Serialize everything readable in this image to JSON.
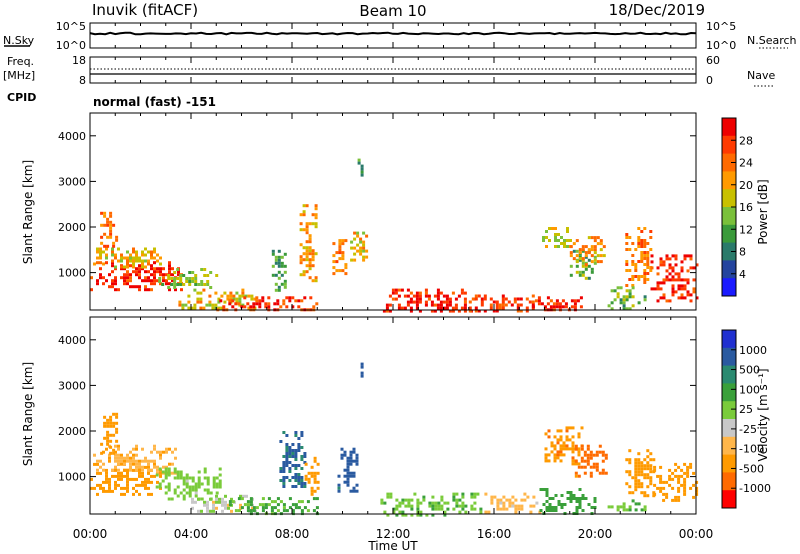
{
  "header": {
    "station": "Inuvik (fitACF)",
    "beam": "Beam 10",
    "date": "18/Dec/2019"
  },
  "panels": {
    "sky": {
      "left_label": "N.Sky",
      "right_label": "N.Search",
      "ticks_left": [
        "10^5",
        "10^0"
      ],
      "ticks_right": [
        "10^5",
        "10^0"
      ]
    },
    "freq": {
      "left_label_1": "Freq.",
      "left_label_2": "[MHz]",
      "right_label": "Nave",
      "ticks_left": [
        "18",
        "8"
      ],
      "ticks_right": [
        "60",
        "0"
      ]
    },
    "cpid": {
      "label": "CPID",
      "value": "normal (fast) -151"
    }
  },
  "colors": {
    "power_scale": [
      "#1b1bff",
      "#24449e",
      "#2a7a6a",
      "#3a9a3a",
      "#7ac03a",
      "#c8c000",
      "#ff9a00",
      "#ff6a00",
      "#ff3a00",
      "#ee0000"
    ],
    "velocity_scale": [
      "#ff0000",
      "#ff6a00",
      "#ff9a00",
      "#ffb64a",
      "#c8c8c8",
      "#7acb3a",
      "#3aa03a",
      "#2a8a70",
      "#2a5aa0",
      "#2030d0"
    ],
    "sky_trace": "#000000"
  },
  "chart_data": [
    {
      "type": "heatmap",
      "name": "power",
      "ylabel": "Slant Range [km]",
      "colorbar_label": "Power [dB]",
      "colorbar_ticks": [
        "28",
        "24",
        "20",
        "16",
        "12",
        "8",
        "4"
      ],
      "ylim": [
        180,
        4500
      ],
      "yticks": [
        1000,
        2000,
        3000,
        4000
      ],
      "x_ticks": [
        "00:00",
        "04:00",
        "08:00",
        "12:00",
        "16:00",
        "20:00",
        "00:00"
      ],
      "xlim_hours": [
        0,
        24
      ],
      "blobs": [
        {
          "t0": 0.0,
          "t1": 3.7,
          "r0": 650,
          "r1": 1250,
          "v": 27
        },
        {
          "t0": 0.0,
          "t1": 2.8,
          "r0": 1100,
          "r1": 1550,
          "v": 18
        },
        {
          "t0": 0.4,
          "t1": 1.0,
          "r0": 1500,
          "r1": 2400,
          "v": 22
        },
        {
          "t0": 2.7,
          "t1": 5.0,
          "r0": 700,
          "r1": 1100,
          "v": 14
        },
        {
          "t0": 3.5,
          "t1": 6.5,
          "r0": 250,
          "r1": 650,
          "v": 18
        },
        {
          "t0": 5.0,
          "t1": 9.0,
          "r0": 180,
          "r1": 480,
          "v": 26
        },
        {
          "t0": 7.2,
          "t1": 7.7,
          "r0": 600,
          "r1": 1500,
          "v": 10
        },
        {
          "t0": 8.3,
          "t1": 9.0,
          "r0": 800,
          "r1": 2500,
          "v": 20
        },
        {
          "t0": 9.6,
          "t1": 10.1,
          "r0": 1000,
          "r1": 1800,
          "v": 22
        },
        {
          "t0": 10.3,
          "t1": 10.9,
          "r0": 1300,
          "r1": 1900,
          "v": 18
        },
        {
          "t0": 10.6,
          "t1": 10.8,
          "r0": 3100,
          "r1": 3500,
          "v": 10
        },
        {
          "t0": 11.6,
          "t1": 15.2,
          "r0": 180,
          "r1": 650,
          "v": 27
        },
        {
          "t0": 15.0,
          "t1": 17.5,
          "r0": 180,
          "r1": 520,
          "v": 25
        },
        {
          "t0": 17.5,
          "t1": 19.5,
          "r0": 180,
          "r1": 480,
          "v": 27
        },
        {
          "t0": 19.0,
          "t1": 20.0,
          "r0": 900,
          "r1": 1500,
          "v": 12
        },
        {
          "t0": 17.9,
          "t1": 19.0,
          "r0": 1500,
          "r1": 2000,
          "v": 16
        },
        {
          "t0": 19.0,
          "t1": 20.4,
          "r0": 1200,
          "r1": 1800,
          "v": 20
        },
        {
          "t0": 21.2,
          "t1": 22.2,
          "r0": 700,
          "r1": 2000,
          "v": 22
        },
        {
          "t0": 22.2,
          "t1": 24.0,
          "r0": 400,
          "r1": 1400,
          "v": 27
        },
        {
          "t0": 20.5,
          "t1": 22.0,
          "r0": 180,
          "r1": 700,
          "v": 12
        }
      ]
    },
    {
      "type": "heatmap",
      "name": "velocity",
      "ylabel": "Slant Range [km]",
      "colorbar_label": "Velocity [m s⁻¹]",
      "colorbar_ticks": [
        "1000",
        "500",
        "100",
        "25",
        "-25",
        "-100",
        "-500",
        "-1000"
      ],
      "ylim": [
        180,
        4500
      ],
      "yticks": [
        1000,
        2000,
        3000,
        4000
      ],
      "xlabel": "Time UT",
      "x_ticks": [
        "00:00",
        "04:00",
        "08:00",
        "12:00",
        "16:00",
        "20:00",
        "00:00"
      ],
      "xlim_hours": [
        0,
        24
      ],
      "blobs": [
        {
          "t0": 0.0,
          "t1": 2.8,
          "r0": 600,
          "r1": 1300,
          "v": -150
        },
        {
          "t0": 0.0,
          "t1": 3.4,
          "r0": 1100,
          "r1": 1700,
          "v": -80
        },
        {
          "t0": 0.4,
          "t1": 1.0,
          "r0": 1500,
          "r1": 2400,
          "v": -200
        },
        {
          "t0": 2.6,
          "t1": 5.2,
          "r0": 500,
          "r1": 1200,
          "v": 60
        },
        {
          "t0": 4.0,
          "t1": 6.5,
          "r0": 250,
          "r1": 600,
          "v": 10
        },
        {
          "t0": 5.5,
          "t1": 9.0,
          "r0": 180,
          "r1": 550,
          "v": 120
        },
        {
          "t0": 7.5,
          "t1": 8.5,
          "r0": 800,
          "r1": 2000,
          "v": 600
        },
        {
          "t0": 8.5,
          "t1": 9.0,
          "r0": 600,
          "r1": 1500,
          "v": -150
        },
        {
          "t0": 9.8,
          "t1": 10.6,
          "r0": 700,
          "r1": 1700,
          "v": 700
        },
        {
          "t0": 10.6,
          "t1": 10.8,
          "r0": 3100,
          "r1": 3500,
          "v": 600
        },
        {
          "t0": 11.5,
          "t1": 15.5,
          "r0": 180,
          "r1": 650,
          "v": 80
        },
        {
          "t0": 15.5,
          "t1": 17.8,
          "r0": 200,
          "r1": 650,
          "v": -60
        },
        {
          "t0": 17.8,
          "t1": 20.0,
          "r0": 200,
          "r1": 750,
          "v": 200
        },
        {
          "t0": 18.0,
          "t1": 19.5,
          "r0": 1300,
          "r1": 2100,
          "v": -400
        },
        {
          "t0": 19.2,
          "t1": 20.4,
          "r0": 1000,
          "r1": 1700,
          "v": -700
        },
        {
          "t0": 21.2,
          "t1": 22.3,
          "r0": 600,
          "r1": 1600,
          "v": -250
        },
        {
          "t0": 22.3,
          "t1": 24.0,
          "r0": 500,
          "r1": 1300,
          "v": -150
        },
        {
          "t0": 20.5,
          "t1": 22.0,
          "r0": 180,
          "r1": 500,
          "v": 80
        }
      ]
    }
  ]
}
